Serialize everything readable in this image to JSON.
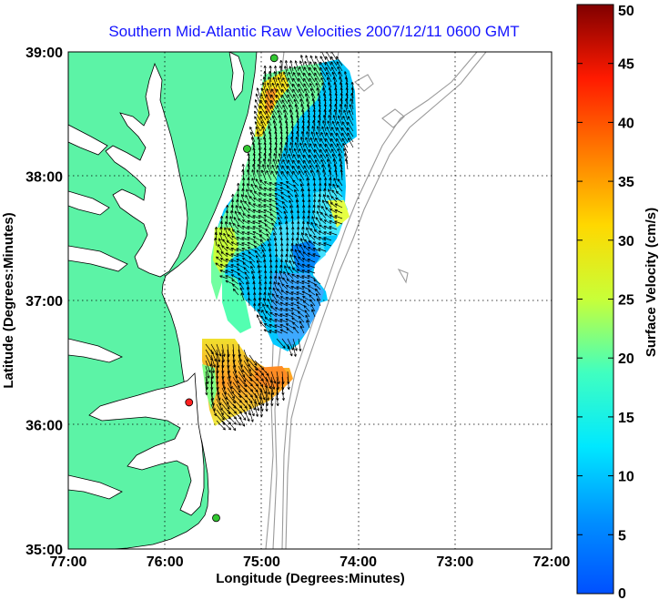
{
  "title": "Southern Mid-Atlantic Raw Velocities 2007/12/11 0600 GMT",
  "xlabel": "Longitude (Degrees:Minutes)",
  "ylabel": "Latitude (Degrees:Minutes)",
  "x_ticks": [
    "77:00",
    "76:00",
    "75:00",
    "74:00",
    "73:00",
    "72:00"
  ],
  "y_ticks": [
    "39:00",
    "38:00",
    "37:00",
    "36:00",
    "35:00"
  ],
  "colorbar": {
    "label": "Surface Velocity (cm/s)",
    "ticks": [
      "50",
      "45",
      "40",
      "35",
      "30",
      "25",
      "20",
      "15",
      "10",
      "5",
      "0"
    ],
    "range": [
      0,
      50
    ]
  },
  "map": {
    "lon_range": [
      -77,
      -72
    ],
    "lat_range": [
      35,
      39
    ],
    "grid": true,
    "land_color": "#5cf3a6",
    "stations": [
      {
        "lon": -74.87,
        "lat": 38.95,
        "color": "#32c832"
      },
      {
        "lon": -75.15,
        "lat": 38.22,
        "color": "#32c832"
      },
      {
        "lon": -75.75,
        "lat": 36.18,
        "color": "#ff2020"
      },
      {
        "lon": -75.47,
        "lat": 35.25,
        "color": "#32c832"
      }
    ]
  }
}
